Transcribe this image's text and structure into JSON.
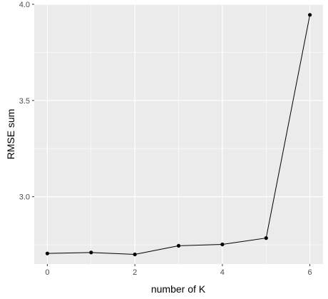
{
  "chart_data": {
    "type": "line",
    "title": "",
    "xlabel": "number of K",
    "ylabel": "RMSE sum",
    "x": [
      0,
      1,
      2,
      3,
      4,
      5,
      6
    ],
    "y": [
      2.705,
      2.71,
      2.7,
      2.745,
      2.752,
      2.785,
      3.945
    ],
    "xlim": [
      -0.3,
      6.3
    ],
    "ylim": [
      2.65,
      4.0
    ],
    "xticks": [
      0,
      2,
      4,
      6
    ],
    "xtick_labels": [
      "0",
      "2",
      "4",
      "6"
    ],
    "yticks": [
      3.0,
      3.5,
      4.0
    ],
    "ytick_labels": [
      "3.0",
      "3.5",
      "4.0"
    ],
    "grid": true,
    "legend": "none",
    "colors": {
      "panel": "#ebebeb",
      "grid_major": "#ffffff",
      "line": "#000000",
      "point": "#000000"
    }
  }
}
